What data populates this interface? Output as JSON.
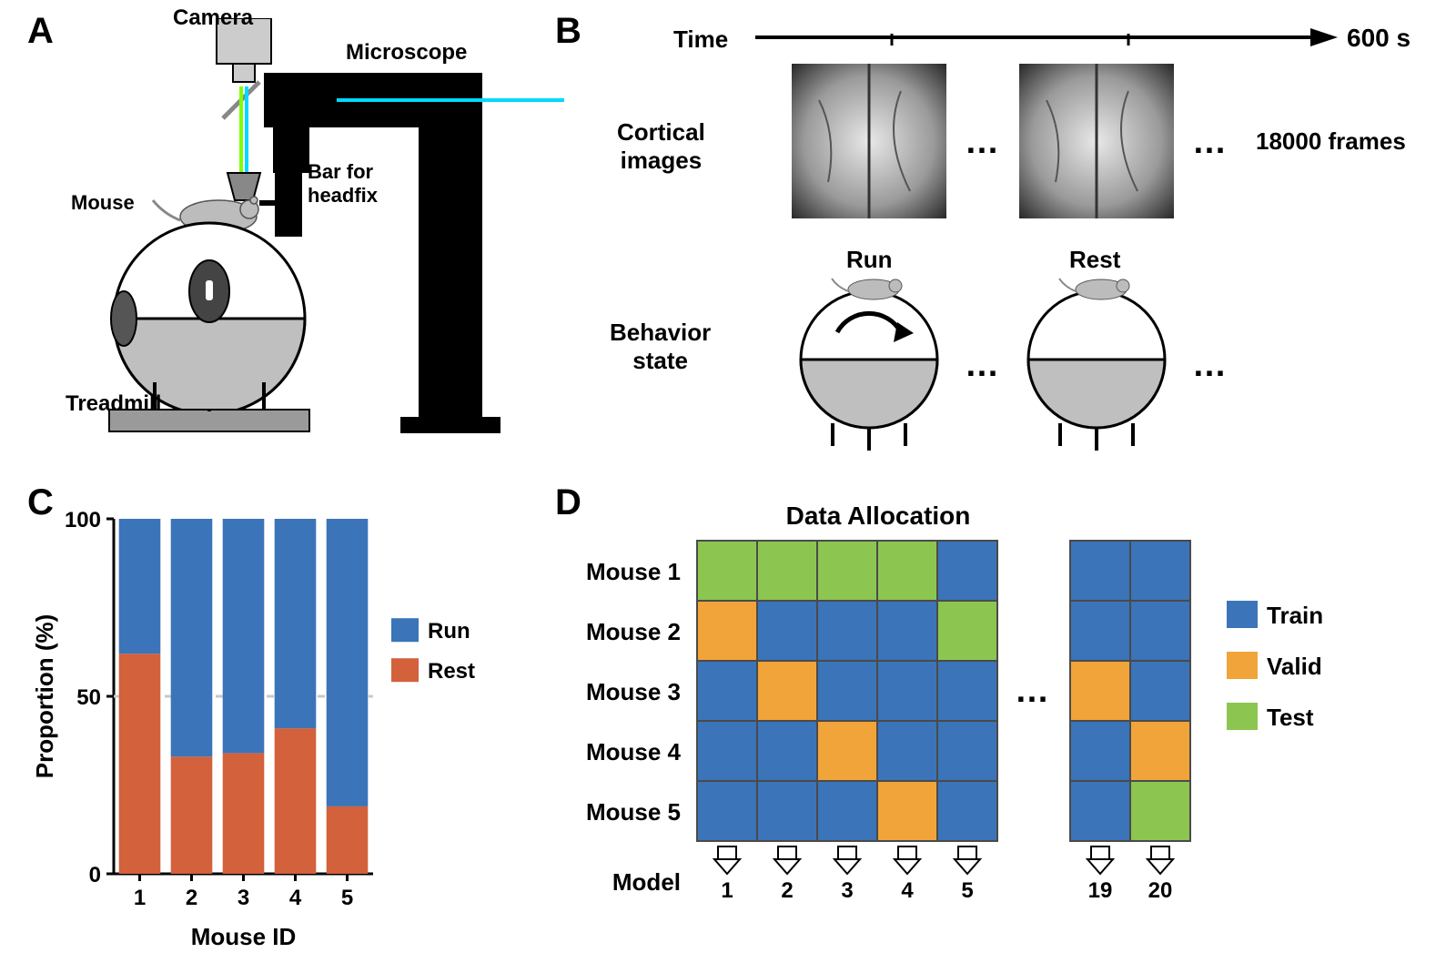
{
  "panelLabels": {
    "A": "A",
    "B": "B",
    "C": "C",
    "D": "D"
  },
  "panelA": {
    "camera": "Camera",
    "microscope": "Microscope",
    "mouse": "Mouse",
    "headfix": "Bar for\nheadfix",
    "treadmill": "Treadmill",
    "colors": {
      "cameraBody": "#cccccc",
      "microscopeBody": "#000000",
      "laser": "#00e0ff",
      "beam": "#7fff00",
      "treadmillBall": "#ffffff",
      "treadmillBase": "#888888",
      "mouseBody": "#bcbcbc"
    }
  },
  "panelB": {
    "timeLabel": "Time",
    "timeEnd": "600 s",
    "corticalLabel": "Cortical\nimages",
    "framesLabel": "18000 frames",
    "behaviorLabel": "Behavior\nstate",
    "run": "Run",
    "rest": "Rest",
    "dots": "…",
    "colors": {
      "arrow": "#000000",
      "imgBg": "#6a6a6a"
    }
  },
  "panelC": {
    "type": "stacked-bar",
    "ylabel": "Proportion (%)",
    "xlabel": "Mouse ID",
    "categories": [
      "1",
      "2",
      "3",
      "4",
      "5"
    ],
    "rest": [
      62,
      33,
      34,
      41,
      19
    ],
    "run": [
      38,
      67,
      66,
      59,
      81
    ],
    "colors": {
      "run": "#3b74b8",
      "rest": "#d2613c"
    },
    "ylim": [
      0,
      100
    ],
    "yticks": [
      0,
      50,
      100
    ],
    "guide": 50,
    "legend": [
      {
        "label": "Run",
        "color": "#3b74b8"
      },
      {
        "label": "Rest",
        "color": "#d2613c"
      }
    ],
    "bar_width": 0.8,
    "fontsize": {
      "axis": 26,
      "tick": 24,
      "legend": 24
    }
  },
  "panelD": {
    "title": "Data Allocation",
    "rowLabels": [
      "Mouse 1",
      "Mouse 2",
      "Mouse 3",
      "Mouse 4",
      "Mouse 5"
    ],
    "modelLabel": "Model",
    "dots": "…",
    "group1": {
      "cols": [
        "1",
        "2",
        "3",
        "4",
        "5"
      ],
      "cells": [
        [
          "test",
          "test",
          "test",
          "test",
          "train"
        ],
        [
          "valid",
          "train",
          "train",
          "train",
          "test"
        ],
        [
          "train",
          "valid",
          "train",
          "train",
          "train"
        ],
        [
          "train",
          "train",
          "valid",
          "train",
          "train"
        ],
        [
          "train",
          "train",
          "train",
          "valid",
          "train"
        ]
      ]
    },
    "group2": {
      "cols": [
        "19",
        "20"
      ],
      "cells": [
        [
          "train",
          "train"
        ],
        [
          "train",
          "train"
        ],
        [
          "valid",
          "train"
        ],
        [
          "train",
          "valid"
        ],
        [
          "train",
          "test"
        ]
      ]
    },
    "colors": {
      "train": "#3b74b8",
      "valid": "#f0a43a",
      "test": "#8cc651",
      "border": "#4a4a4a"
    },
    "legend": [
      {
        "label": "Train",
        "key": "train"
      },
      {
        "label": "Valid",
        "key": "valid"
      },
      {
        "label": "Test",
        "key": "test"
      }
    ],
    "fontsize": {
      "title": 28,
      "row": 26,
      "col": 24,
      "legend": 26
    }
  },
  "globalFont": {
    "panelLabel": 40
  }
}
